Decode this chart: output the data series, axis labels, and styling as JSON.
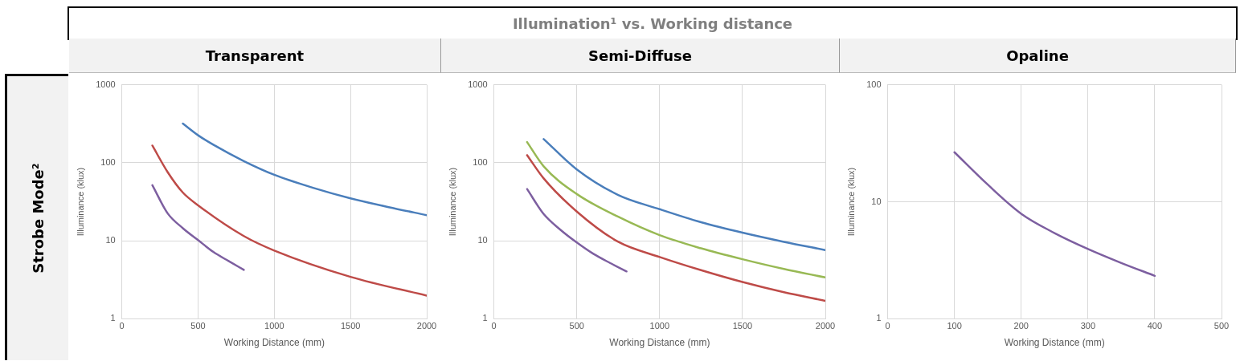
{
  "chart_data": [
    {
      "type": "line",
      "title": "Transparent",
      "xlabel": "Working Distance (mm)",
      "ylabel": "Illuminance (klux)",
      "log": "y",
      "grid": true,
      "marker": "none",
      "line_style": "solid",
      "xlim": [
        0,
        2000
      ],
      "xticks": [
        0,
        500,
        1000,
        1500,
        2000
      ],
      "ylim": [
        1,
        1000
      ],
      "yticks": [
        1,
        10,
        100,
        1000
      ],
      "annotations": [
        "Illumination¹ vs. Working distance",
        "Strobe Mode²"
      ],
      "series": [
        {
          "color": "#4a7ebb",
          "x": [
            400,
            500,
            600,
            800,
            1000,
            1250,
            1500,
            1750,
            2000
          ],
          "values": [
            318,
            225,
            170,
            105,
            70,
            48,
            35,
            27,
            21.3
          ]
        },
        {
          "color": "#be4b48",
          "x": [
            200,
            300,
            400,
            500,
            800,
            1000,
            1500,
            2000
          ],
          "values": [
            166,
            76,
            41.5,
            28.5,
            11.5,
            7.5,
            3.45,
            1.98
          ]
        },
        {
          "color": "#7d5fa0",
          "x": [
            200,
            300,
            400,
            500,
            600,
            700,
            800
          ],
          "values": [
            51.5,
            22.5,
            14.5,
            10.2,
            7.2,
            5.5,
            4.24
          ]
        }
      ]
    },
    {
      "type": "line",
      "title": "Semi-Diffuse",
      "xlabel": "Working Distance (mm)",
      "ylabel": "Illuminance (klux)",
      "log": "y",
      "grid": true,
      "marker": "none",
      "line_style": "solid",
      "xlim": [
        0,
        2000
      ],
      "xticks": [
        0,
        500,
        1000,
        1500,
        2000
      ],
      "ylim": [
        1,
        1000
      ],
      "yticks": [
        1,
        10,
        100,
        1000
      ],
      "series": [
        {
          "color": "#4a7ebb",
          "x": [
            300,
            500,
            750,
            1000,
            1250,
            1500,
            1750,
            2000
          ],
          "values": [
            201,
            82,
            38.6,
            25.4,
            17.3,
            12.7,
            9.7,
            7.6
          ]
        },
        {
          "color": "#98b954",
          "x": [
            200,
            300,
            500,
            750,
            1000,
            1250,
            1500,
            1750,
            2000
          ],
          "values": [
            184,
            90,
            39.7,
            20.3,
            11.8,
            8,
            5.8,
            4.35,
            3.39
          ]
        },
        {
          "color": "#be4b48",
          "x": [
            200,
            300,
            500,
            750,
            1000,
            1250,
            1500,
            1750,
            2000
          ],
          "values": [
            125,
            63,
            23.7,
            9.7,
            6.2,
            4.2,
            2.96,
            2.19,
            1.7
          ]
        },
        {
          "color": "#7d5fa0",
          "x": [
            200,
            300,
            400,
            500,
            600,
            700,
            800
          ],
          "values": [
            46,
            22,
            13.9,
            9.5,
            6.8,
            5.2,
            4.05
          ]
        }
      ]
    },
    {
      "type": "line",
      "title": "Opaline",
      "xlabel": "Working Distance (mm)",
      "ylabel": "Illuminance (klux)",
      "log": "y",
      "grid": true,
      "marker": "none",
      "line_style": "solid",
      "xlim": [
        0,
        500
      ],
      "xticks": [
        0,
        100,
        200,
        300,
        400,
        500
      ],
      "ylim": [
        1,
        100
      ],
      "yticks": [
        1,
        10,
        100
      ],
      "series": [
        {
          "color": "#7d5fa0",
          "x": [
            100,
            150,
            200,
            250,
            300,
            350,
            400
          ],
          "values": [
            26.5,
            14,
            7.9,
            5.4,
            3.95,
            3.0,
            2.33
          ]
        }
      ]
    }
  ]
}
